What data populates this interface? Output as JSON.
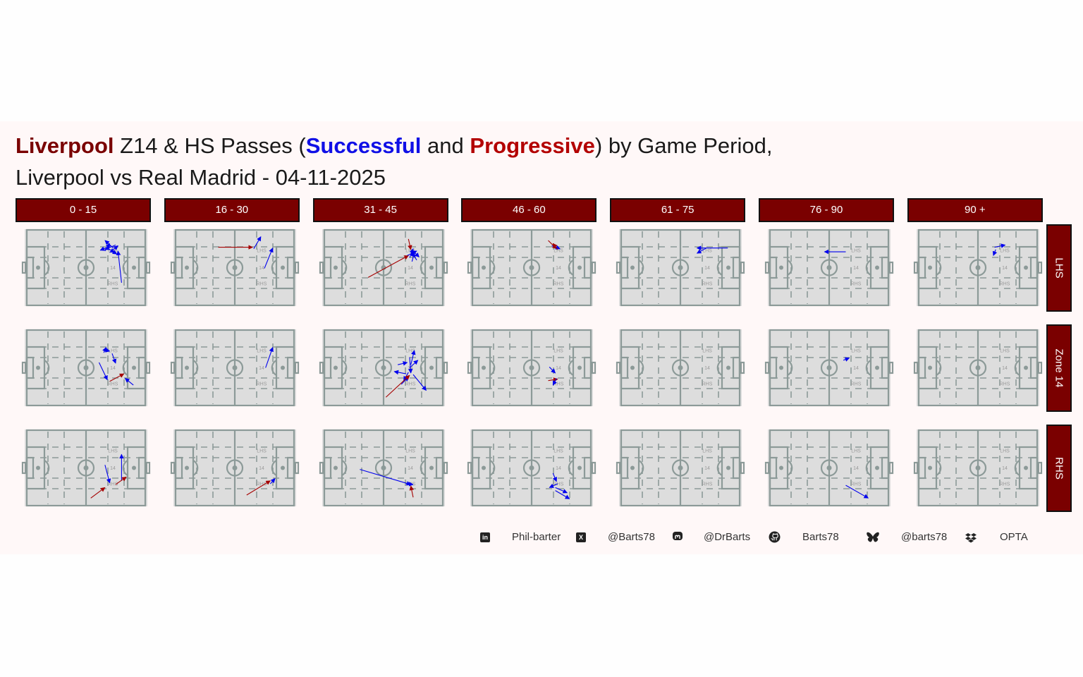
{
  "title": {
    "team": "Liverpool",
    "part1": " Z14 & HS Passes (",
    "successful": "Successful",
    "and": " and ",
    "progressive": "Progressive",
    "part2": ") by Game Period,",
    "line2": "Liverpool vs Real Madrid - 04-11-2025"
  },
  "colors": {
    "successful": "#0000ee",
    "progressive": "#a50000",
    "strip": "#7a0000",
    "pitch": "#dddddd",
    "pitch_lines": "#8c9a98",
    "panel": "#fff8f8"
  },
  "pitch_labels": {
    "lhs": "LHS",
    "z14": "14",
    "rhs": "RHS"
  },
  "chart_data": {
    "type": "faceted pass map",
    "periods": [
      "0 - 15",
      "16 - 30",
      "31 - 45",
      "46 - 60",
      "61 - 75",
      "76 - 90",
      "90 +"
    ],
    "zones": [
      "LHS",
      "Zone 14",
      "RHS"
    ],
    "pitch": {
      "x_range": [
        0,
        100
      ],
      "y_range": [
        0,
        100
      ]
    },
    "passes": [
      {
        "period": "0 - 15",
        "zone": "LHS",
        "type": "successful",
        "x1": 71,
        "y1": 79,
        "x2": 62,
        "y2": 73
      },
      {
        "period": "0 - 15",
        "zone": "LHS",
        "type": "successful",
        "x1": 66,
        "y1": 72,
        "x2": 70,
        "y2": 82
      },
      {
        "period": "0 - 15",
        "zone": "LHS",
        "type": "successful",
        "x1": 73,
        "y1": 76,
        "x2": 66,
        "y2": 86
      },
      {
        "period": "0 - 15",
        "zone": "LHS",
        "type": "successful",
        "x1": 70,
        "y1": 70,
        "x2": 77,
        "y2": 79
      },
      {
        "period": "0 - 15",
        "zone": "LHS",
        "type": "successful",
        "x1": 75,
        "y1": 80,
        "x2": 66,
        "y2": 74
      },
      {
        "period": "0 - 15",
        "zone": "LHS",
        "type": "successful",
        "x1": 68,
        "y1": 76,
        "x2": 74,
        "y2": 70
      },
      {
        "period": "0 - 15",
        "zone": "LHS",
        "type": "successful",
        "x1": 80,
        "y1": 30,
        "x2": 77,
        "y2": 72
      },
      {
        "period": "0 - 15",
        "zone": "LHS",
        "type": "successful",
        "x1": 72,
        "y1": 72,
        "x2": 76,
        "y2": 68
      },
      {
        "period": "0 - 15",
        "zone": "Zone 14",
        "type": "successful",
        "x1": 65,
        "y1": 70,
        "x2": 67,
        "y2": 77
      },
      {
        "period": "0 - 15",
        "zone": "Zone 14",
        "type": "successful",
        "x1": 65,
        "y1": 74,
        "x2": 70,
        "y2": 72
      },
      {
        "period": "0 - 15",
        "zone": "Zone 14",
        "type": "successful",
        "x1": 61,
        "y1": 57,
        "x2": 68,
        "y2": 34
      },
      {
        "period": "0 - 15",
        "zone": "Zone 14",
        "type": "successful",
        "x1": 72,
        "y1": 69,
        "x2": 75,
        "y2": 56
      },
      {
        "period": "0 - 15",
        "zone": "Zone 14",
        "type": "progressive",
        "x1": 70,
        "y1": 32,
        "x2": 82,
        "y2": 42
      },
      {
        "period": "0 - 15",
        "zone": "Zone 14",
        "type": "successful",
        "x1": 90,
        "y1": 27,
        "x2": 83,
        "y2": 36
      },
      {
        "period": "0 - 15",
        "zone": "RHS",
        "type": "successful",
        "x1": 66,
        "y1": 54,
        "x2": 70,
        "y2": 30
      },
      {
        "period": "0 - 15",
        "zone": "RHS",
        "type": "successful",
        "x1": 80,
        "y1": 33,
        "x2": 80,
        "y2": 68
      },
      {
        "period": "0 - 15",
        "zone": "RHS",
        "type": "progressive",
        "x1": 75,
        "y1": 28,
        "x2": 84,
        "y2": 38
      },
      {
        "period": "0 - 15",
        "zone": "RHS",
        "type": "progressive",
        "x1": 54,
        "y1": 10,
        "x2": 66,
        "y2": 24
      },
      {
        "period": "16 - 30",
        "zone": "LHS",
        "type": "progressive",
        "x1": 36,
        "y1": 77,
        "x2": 65,
        "y2": 77
      },
      {
        "period": "16 - 30",
        "zone": "LHS",
        "type": "successful",
        "x1": 66,
        "y1": 75,
        "x2": 72,
        "y2": 91
      },
      {
        "period": "16 - 30",
        "zone": "LHS",
        "type": "successful",
        "x1": 75,
        "y1": 49,
        "x2": 82,
        "y2": 76
      },
      {
        "period": "16 - 30",
        "zone": "Zone 14",
        "type": "successful",
        "x1": 76,
        "y1": 50,
        "x2": 82,
        "y2": 77
      },
      {
        "period": "16 - 30",
        "zone": "RHS",
        "type": "progressive",
        "x1": 60,
        "y1": 14,
        "x2": 80,
        "y2": 33
      },
      {
        "period": "16 - 30",
        "zone": "RHS",
        "type": "successful",
        "x1": 80,
        "y1": 29,
        "x2": 84,
        "y2": 36
      },
      {
        "period": "31 - 45",
        "zone": "LHS",
        "type": "progressive",
        "x1": 37,
        "y1": 37,
        "x2": 71,
        "y2": 66
      },
      {
        "period": "31 - 45",
        "zone": "LHS",
        "type": "progressive",
        "x1": 71,
        "y1": 88,
        "x2": 73,
        "y2": 74
      },
      {
        "period": "31 - 45",
        "zone": "LHS",
        "type": "successful",
        "x1": 72,
        "y1": 63,
        "x2": 75,
        "y2": 75
      },
      {
        "period": "31 - 45",
        "zone": "LHS",
        "type": "successful",
        "x1": 78,
        "y1": 60,
        "x2": 73,
        "y2": 72
      },
      {
        "period": "31 - 45",
        "zone": "LHS",
        "type": "successful",
        "x1": 75,
        "y1": 72,
        "x2": 80,
        "y2": 64
      },
      {
        "period": "31 - 45",
        "zone": "LHS",
        "type": "successful",
        "x1": 70,
        "y1": 66,
        "x2": 78,
        "y2": 72
      },
      {
        "period": "31 - 45",
        "zone": "LHS",
        "type": "successful",
        "x1": 74,
        "y1": 58,
        "x2": 76,
        "y2": 70
      },
      {
        "period": "31 - 45",
        "zone": "Zone 14",
        "type": "successful",
        "x1": 73,
        "y1": 54,
        "x2": 76,
        "y2": 73
      },
      {
        "period": "31 - 45",
        "zone": "Zone 14",
        "type": "successful",
        "x1": 72,
        "y1": 64,
        "x2": 73,
        "y2": 43
      },
      {
        "period": "31 - 45",
        "zone": "Zone 14",
        "type": "successful",
        "x1": 69,
        "y1": 42,
        "x2": 59,
        "y2": 45
      },
      {
        "period": "31 - 45",
        "zone": "Zone 14",
        "type": "successful",
        "x1": 62,
        "y1": 54,
        "x2": 70,
        "y2": 57
      },
      {
        "period": "31 - 45",
        "zone": "Zone 14",
        "type": "successful",
        "x1": 71,
        "y1": 44,
        "x2": 67,
        "y2": 33
      },
      {
        "period": "31 - 45",
        "zone": "Zone 14",
        "type": "successful",
        "x1": 75,
        "y1": 41,
        "x2": 86,
        "y2": 20
      },
      {
        "period": "31 - 45",
        "zone": "Zone 14",
        "type": "successful",
        "x1": 72,
        "y1": 50,
        "x2": 79,
        "y2": 60
      },
      {
        "period": "31 - 45",
        "zone": "Zone 14",
        "type": "successful",
        "x1": 65,
        "y1": 28,
        "x2": 71,
        "y2": 38
      },
      {
        "period": "31 - 45",
        "zone": "Zone 14",
        "type": "progressive",
        "x1": 52,
        "y1": 11,
        "x2": 72,
        "y2": 40
      },
      {
        "period": "31 - 45",
        "zone": "RHS",
        "type": "successful",
        "x1": 30,
        "y1": 48,
        "x2": 73,
        "y2": 28
      },
      {
        "period": "31 - 45",
        "zone": "RHS",
        "type": "successful",
        "x1": 69,
        "y1": 29,
        "x2": 75,
        "y2": 28
      },
      {
        "period": "31 - 45",
        "zone": "RHS",
        "type": "progressive",
        "x1": 75,
        "y1": 11,
        "x2": 73,
        "y2": 26
      },
      {
        "period": "46 - 60",
        "zone": "LHS",
        "type": "progressive",
        "x1": 64,
        "y1": 86,
        "x2": 71,
        "y2": 75
      },
      {
        "period": "46 - 60",
        "zone": "LHS",
        "type": "successful",
        "x1": 67,
        "y1": 79,
        "x2": 74,
        "y2": 75
      },
      {
        "period": "46 - 60",
        "zone": "LHS",
        "type": "progressive",
        "x1": 72,
        "y1": 74,
        "x2": 68,
        "y2": 82
      },
      {
        "period": "46 - 60",
        "zone": "Zone 14",
        "type": "successful",
        "x1": 65,
        "y1": 51,
        "x2": 70,
        "y2": 43
      },
      {
        "period": "46 - 60",
        "zone": "Zone 14",
        "type": "progressive",
        "x1": 64,
        "y1": 33,
        "x2": 72,
        "y2": 35
      },
      {
        "period": "46 - 60",
        "zone": "Zone 14",
        "type": "successful",
        "x1": 71,
        "y1": 36,
        "x2": 68,
        "y2": 27
      },
      {
        "period": "46 - 60",
        "zone": "RHS",
        "type": "successful",
        "x1": 68,
        "y1": 43,
        "x2": 71,
        "y2": 32
      },
      {
        "period": "46 - 60",
        "zone": "RHS",
        "type": "successful",
        "x1": 72,
        "y1": 29,
        "x2": 65,
        "y2": 24
      },
      {
        "period": "46 - 60",
        "zone": "RHS",
        "type": "successful",
        "x1": 70,
        "y1": 24,
        "x2": 80,
        "y2": 17
      },
      {
        "period": "46 - 60",
        "zone": "RHS",
        "type": "successful",
        "x1": 70,
        "y1": 20,
        "x2": 82,
        "y2": 9
      },
      {
        "period": "61 - 75",
        "zone": "LHS",
        "type": "successful",
        "x1": 90,
        "y1": 76,
        "x2": 64,
        "y2": 76
      },
      {
        "period": "61 - 75",
        "zone": "LHS",
        "type": "successful",
        "x1": 72,
        "y1": 76,
        "x2": 64,
        "y2": 69
      },
      {
        "period": "76 - 90",
        "zone": "LHS",
        "type": "successful",
        "x1": 64,
        "y1": 71,
        "x2": 46,
        "y2": 71
      },
      {
        "period": "76 - 90",
        "zone": "Zone 14",
        "type": "successful",
        "x1": 62,
        "y1": 60,
        "x2": 67,
        "y2": 63
      },
      {
        "period": "76 - 90",
        "zone": "RHS",
        "type": "successful",
        "x1": 64,
        "y1": 27,
        "x2": 83,
        "y2": 10
      },
      {
        "period": "90 +",
        "zone": "LHS",
        "type": "successful",
        "x1": 64,
        "y1": 77,
        "x2": 73,
        "y2": 80
      },
      {
        "period": "90 +",
        "zone": "LHS",
        "type": "successful",
        "x1": 65,
        "y1": 74,
        "x2": 63,
        "y2": 66
      }
    ]
  },
  "footer": {
    "linkedin_label": "Phil-barter",
    "x_label": "@Barts78",
    "mastodon_label": "@DrBarts",
    "github_label": "Barts78",
    "bluesky_label": "@barts78",
    "data_label": "OPTA"
  },
  "icons": [
    "linkedin-icon",
    "x-icon",
    "mastodon-icon",
    "github-icon",
    "bluesky-icon",
    "dropbox-icon"
  ]
}
